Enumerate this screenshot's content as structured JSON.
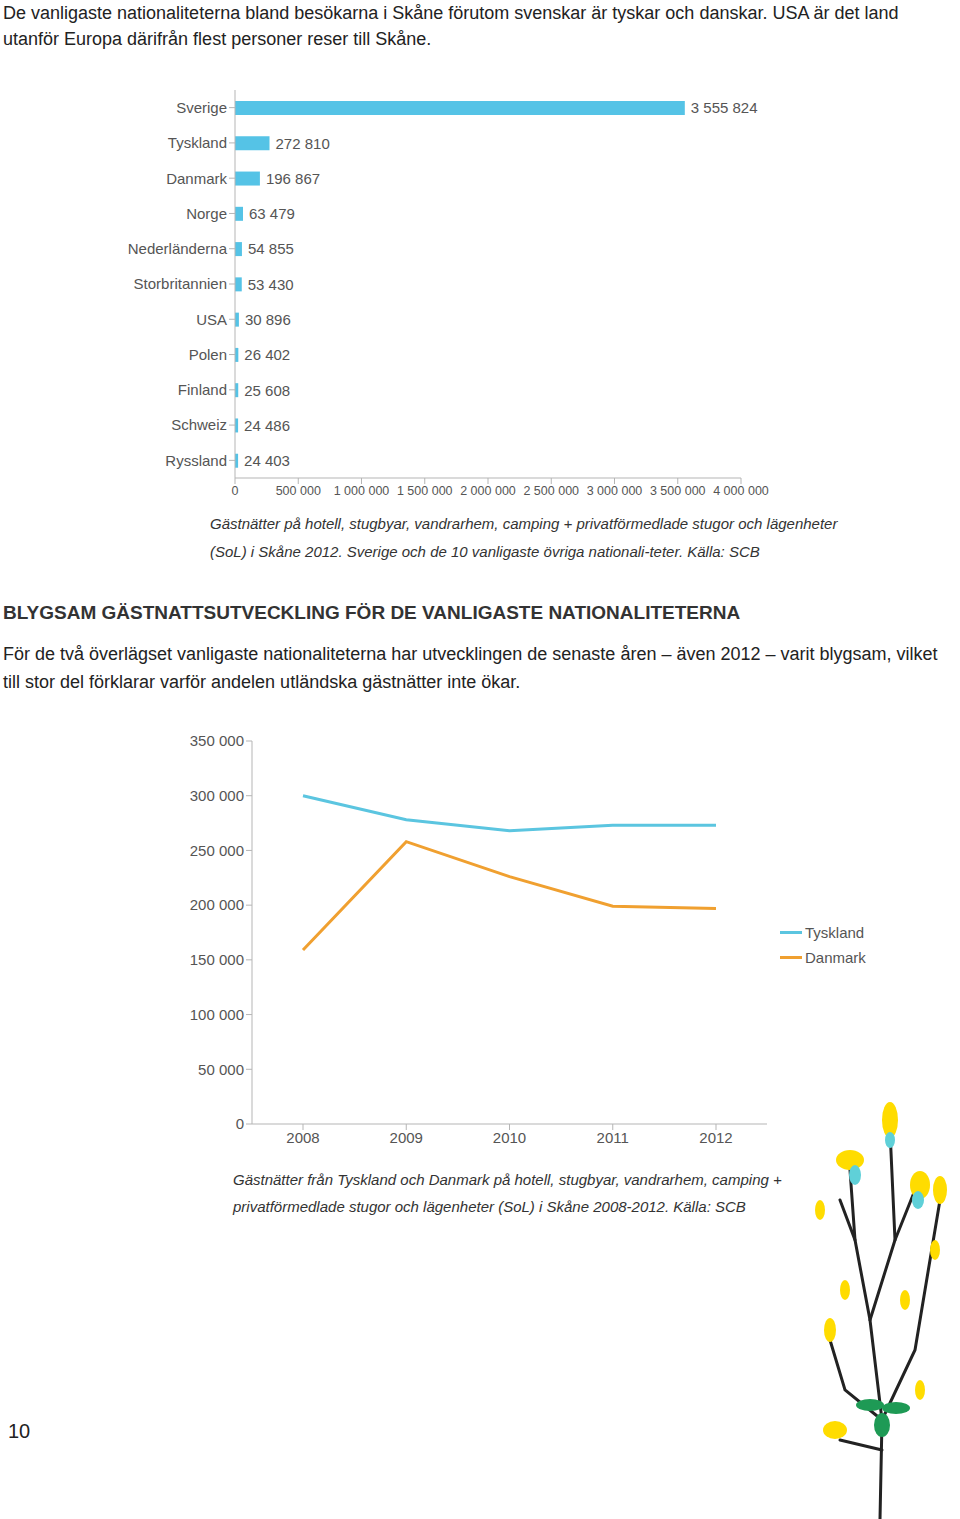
{
  "document": {
    "intro": "De vanligaste nationaliteterna bland besökarna i Skåne förutom svenskar är tyskar och danskar. USA är det land utanför Europa därifrån flest personer reser till Skåne.",
    "caption_1": "Gästnätter på hotell, stugbyar, vandrarhem, camping + privatförmedlade stugor och lägenheter (SoL) i Skåne 2012. Sverige och de 10 vanligaste övriga nationali-teter. Källa: SCB",
    "heading": "BLYGSAM GÄSTNATTSUTVECKLING FÖR DE VANLIGASTE NATIONALITETERNA",
    "paragraph": "För de två överlägset vanligaste nationaliteterna har utvecklingen de senaste åren – även 2012 – varit blygsam, vilket till stor del förklarar varför andelen utländska gästnätter inte ökar.",
    "caption_2": "Gästnätter från Tyskland och Danmark på hotell, stugbyar, vandrarhem, camping + privatförmedlade stugor och lägenheter (SoL) i Skåne 2008-2012. Källa: SCB",
    "page_number": 10
  },
  "chart_data": [
    {
      "type": "bar",
      "orientation": "horizontal",
      "categories": [
        "Sverige",
        "Tyskland",
        "Danmark",
        "Norge",
        "Nederländerna",
        "Storbritannien",
        "USA",
        "Polen",
        "Finland",
        "Schweiz",
        "Ryssland"
      ],
      "values": [
        3555824,
        272810,
        196867,
        63479,
        54855,
        53430,
        30896,
        26402,
        25608,
        24486,
        24403
      ],
      "value_labels": [
        "3 555 824",
        "272 810",
        "196 867",
        "63 479",
        "54 855",
        "53 430",
        "30 896",
        "26 402",
        "25 608",
        "24 486",
        "24 403"
      ],
      "data_labels": true,
      "color": "#55c3e6",
      "xlim": [
        0,
        4000000
      ],
      "xticks": [
        0,
        {
          "value": 500000,
          "label": "500 000"
        },
        {
          "value": 1000000,
          "label": "1 000 000"
        },
        {
          "value": 1500000,
          "label": "1 500 000"
        },
        {
          "value": 2000000,
          "label": "2 000 000"
        },
        {
          "value": 2500000,
          "label": "2 500 000"
        },
        {
          "value": 3000000,
          "label": "3 000 000"
        },
        {
          "value": 3500000,
          "label": "3 500 000"
        },
        {
          "value": 4000000,
          "label": "4 000 000"
        }
      ],
      "grid": false
    },
    {
      "type": "line",
      "categories": [
        "2008",
        "2009",
        "2010",
        "2011",
        "2012"
      ],
      "series": [
        {
          "name": "Tyskland",
          "color": "#5bc5e0",
          "values": [
            300000,
            278000,
            268000,
            273000,
            273000
          ]
        },
        {
          "name": "Danmark",
          "color": "#f0a030",
          "values": [
            159000,
            258000,
            226000,
            199000,
            197000
          ]
        }
      ],
      "ylim": [
        0,
        350000
      ],
      "yticks": [
        0,
        {
          "value": 50000,
          "label": "50 000"
        },
        {
          "value": 100000,
          "label": "100 000"
        },
        {
          "value": 150000,
          "label": "150 000"
        },
        {
          "value": 200000,
          "label": "200 000"
        },
        {
          "value": 250000,
          "label": "250 000"
        },
        {
          "value": 300000,
          "label": "300 000"
        },
        {
          "value": 350000,
          "label": "350 000"
        }
      ],
      "legend": "right",
      "grid": false
    }
  ]
}
